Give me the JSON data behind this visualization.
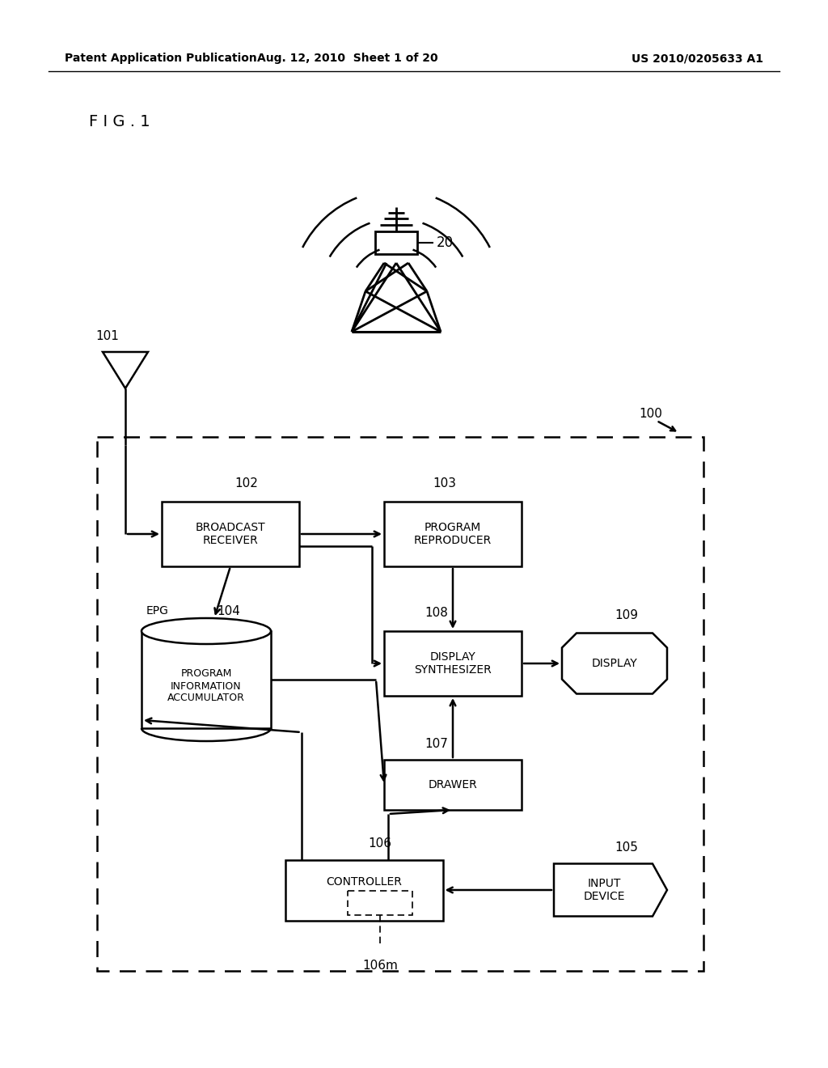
{
  "title_left": "Patent Application Publication",
  "title_center": "Aug. 12, 2010  Sheet 1 of 20",
  "title_right": "US 2010/0205633 A1",
  "fig_label": "F I G . 1",
  "bg_color": "#ffffff",
  "line_color": "#000000"
}
